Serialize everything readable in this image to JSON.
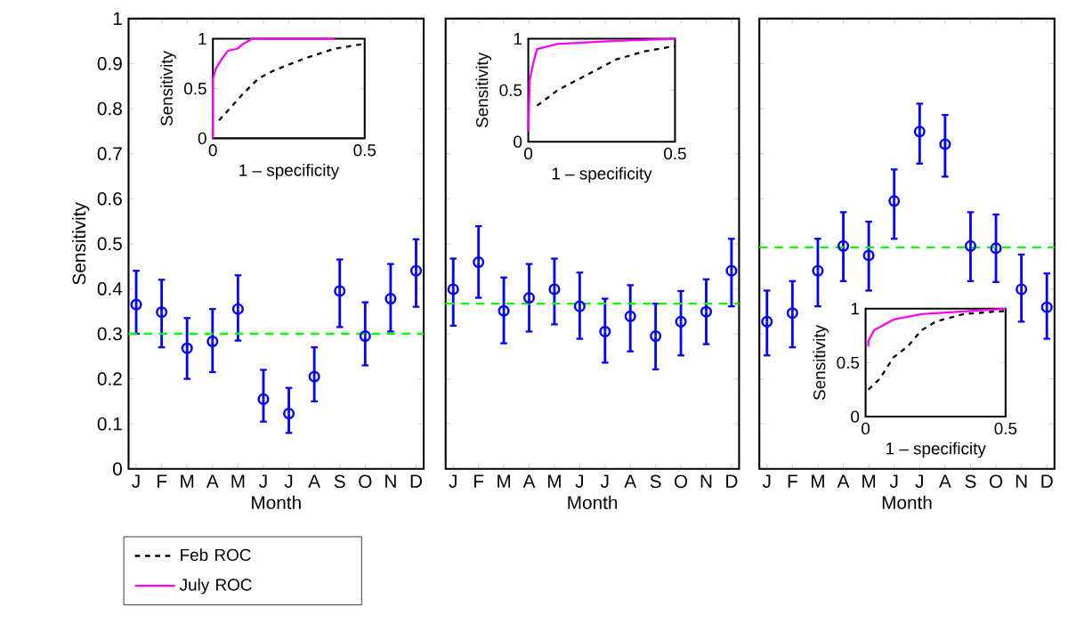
{
  "chart_data": [
    {
      "type": "scatter",
      "xlabel": "Month",
      "ylabel": "Sensitivity",
      "categories": [
        "J",
        "F",
        "M",
        "A",
        "M",
        "J",
        "J",
        "A",
        "S",
        "O",
        "N",
        "D"
      ],
      "color": "#0000ff",
      "marker": "circle",
      "ylim": [
        0,
        1
      ],
      "yticks": [
        0,
        0.1,
        0.2,
        0.3,
        0.4,
        0.5,
        0.6,
        0.7,
        0.8,
        0.9,
        1
      ],
      "values": [
        0.365,
        0.348,
        0.268,
        0.283,
        0.355,
        0.155,
        0.123,
        0.205,
        0.395,
        0.295,
        0.378,
        0.44
      ],
      "errors": [
        [
          0.3,
          0.44
        ],
        [
          0.27,
          0.42
        ],
        [
          0.2,
          0.335
        ],
        [
          0.215,
          0.355
        ],
        [
          0.285,
          0.43
        ],
        [
          0.105,
          0.22
        ],
        [
          0.08,
          0.18
        ],
        [
          0.15,
          0.27
        ],
        [
          0.315,
          0.465
        ],
        [
          0.23,
          0.37
        ],
        [
          0.305,
          0.455
        ],
        [
          0.36,
          0.51
        ]
      ],
      "ref_lines": [
        {
          "axis": "y",
          "value": 0.3,
          "color": "#00ff00",
          "line_style": "dashed"
        }
      ]
    },
    {
      "type": "line",
      "xlabel": "1 – specificity",
      "ylabel": "Sensitivity",
      "xlim": [
        0,
        0.5
      ],
      "ylim": [
        0,
        1
      ],
      "xticks": [
        0,
        0.5
      ],
      "yticks": [
        0,
        0.5,
        1
      ],
      "legend": "bottom",
      "series": [
        {
          "name": "Feb ROC",
          "color": "#000000",
          "line_style": "dashed",
          "x": [
            0.02,
            0.05,
            0.1,
            0.15,
            0.2,
            0.3,
            0.4,
            0.5
          ],
          "values": [
            0.18,
            0.28,
            0.45,
            0.6,
            0.68,
            0.8,
            0.9,
            0.95
          ]
        },
        {
          "name": "July ROC",
          "color": "#ff00ff",
          "line_style": "solid",
          "x": [
            0,
            0,
            0.01,
            0.03,
            0.05,
            0.08,
            0.1,
            0.13,
            0.4
          ],
          "values": [
            0,
            0.6,
            0.7,
            0.8,
            0.88,
            0.9,
            0.95,
            1,
            1
          ]
        }
      ]
    },
    {
      "type": "scatter",
      "xlabel": "Month",
      "tick_labels": "x",
      "categories": [
        "J",
        "F",
        "M",
        "A",
        "M",
        "J",
        "J",
        "A",
        "S",
        "O",
        "N",
        "D"
      ],
      "color": "#0000ff",
      "marker": "circle",
      "ylim": [
        0,
        1
      ],
      "yticks": [
        0,
        0.1,
        0.2,
        0.3,
        0.4,
        0.5,
        0.6,
        0.7,
        0.8,
        0.9,
        1
      ],
      "values": [
        0.399,
        0.459,
        0.351,
        0.38,
        0.399,
        0.361,
        0.305,
        0.339,
        0.295,
        0.327,
        0.349,
        0.44
      ],
      "errors": [
        [
          0.318,
          0.467
        ],
        [
          0.38,
          0.539
        ],
        [
          0.279,
          0.425
        ],
        [
          0.305,
          0.455
        ],
        [
          0.321,
          0.467
        ],
        [
          0.289,
          0.436
        ],
        [
          0.236,
          0.378
        ],
        [
          0.261,
          0.408
        ],
        [
          0.221,
          0.367
        ],
        [
          0.252,
          0.395
        ],
        [
          0.277,
          0.421
        ],
        [
          0.361,
          0.511
        ]
      ],
      "ref_lines": [
        {
          "axis": "y",
          "value": 0.367,
          "color": "#00ff00",
          "line_style": "dashed"
        }
      ]
    },
    {
      "type": "line",
      "xlabel": "1 – specificity",
      "ylabel": "Sensitivity",
      "xlim": [
        0,
        0.5
      ],
      "ylim": [
        0,
        1
      ],
      "xticks": [
        0,
        0.5
      ],
      "yticks": [
        0,
        0.5,
        1
      ],
      "series": [
        {
          "color": "#000000",
          "line_style": "dashed",
          "x": [
            0.03,
            0.1,
            0.2,
            0.3,
            0.4,
            0.5
          ],
          "values": [
            0.35,
            0.5,
            0.65,
            0.8,
            0.88,
            0.93
          ]
        },
        {
          "color": "#ff00ff",
          "line_style": "solid",
          "x": [
            0,
            0.005,
            0.02,
            0.03,
            0.1,
            0.3,
            0.5
          ],
          "values": [
            0.1,
            0.6,
            0.8,
            0.9,
            0.95,
            0.98,
            1
          ]
        }
      ]
    },
    {
      "type": "scatter",
      "xlabel": "Month",
      "tick_labels": "x",
      "categories": [
        "J",
        "F",
        "M",
        "A",
        "M",
        "J",
        "J",
        "A",
        "S",
        "O",
        "N",
        "D"
      ],
      "color": "#0000ff",
      "marker": "circle",
      "ylim": [
        0,
        1
      ],
      "yticks": [
        0,
        0.1,
        0.2,
        0.3,
        0.4,
        0.5,
        0.6,
        0.7,
        0.8,
        0.9,
        1
      ],
      "values": [
        0.327,
        0.346,
        0.44,
        0.495,
        0.474,
        0.595,
        0.749,
        0.721,
        0.495,
        0.49,
        0.399,
        0.359
      ],
      "errors": [
        [
          0.252,
          0.396
        ],
        [
          0.27,
          0.417
        ],
        [
          0.361,
          0.511
        ],
        [
          0.417,
          0.57
        ],
        [
          0.396,
          0.549
        ],
        [
          0.511,
          0.665
        ],
        [
          0.678,
          0.811
        ],
        [
          0.649,
          0.786
        ],
        [
          0.417,
          0.57
        ],
        [
          0.415,
          0.565
        ],
        [
          0.327,
          0.476
        ],
        [
          0.289,
          0.434
        ]
      ],
      "ref_lines": [
        {
          "axis": "y",
          "value": 0.492,
          "color": "#00ff00",
          "line_style": "dashed"
        }
      ]
    },
    {
      "type": "line",
      "xlabel": "1 – specificity",
      "ylabel": "Sensitivity",
      "xlim": [
        0,
        0.5
      ],
      "ylim": [
        0,
        1
      ],
      "xticks": [
        0,
        0.5
      ],
      "yticks": [
        0,
        0.5,
        1
      ],
      "series": [
        {
          "color": "#000000",
          "line_style": "dashed",
          "x": [
            0.01,
            0.05,
            0.1,
            0.15,
            0.2,
            0.25,
            0.35,
            0.5
          ],
          "values": [
            0.25,
            0.35,
            0.55,
            0.65,
            0.8,
            0.88,
            0.95,
            0.98
          ]
        },
        {
          "color": "#ff00ff",
          "line_style": "solid",
          "x": [
            0.01,
            0.01,
            0.03,
            0.1,
            0.2,
            0.5
          ],
          "values": [
            0.65,
            0.7,
            0.8,
            0.9,
            0.95,
            1
          ]
        }
      ]
    }
  ]
}
